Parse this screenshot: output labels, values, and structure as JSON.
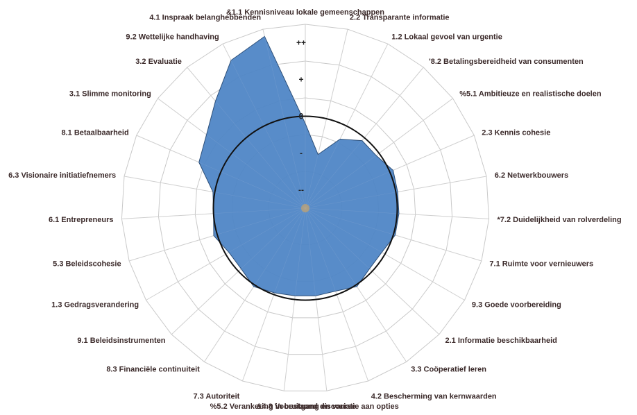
{
  "chart_data": {
    "type": "radar",
    "title": "",
    "categories": [
      "&1.1 Kennisniveau lokale gemeenschappen",
      "2.2 Transparante informatie",
      "1.2 Lokaal gevoel van urgentie",
      "'8.2 Betalingsbereidheid van consumenten",
      "%5.1 Ambitieuze en realistische doelen",
      "2.3 Kennis cohesie",
      "6.2 Netwerkbouwers",
      "*7.2 Duidelijkheid van rolverdeling",
      "7.1 Ruimte voor vernieuwers",
      "9.3 Goede voorbereiding",
      "2.1 Informatie beschikbaarheid",
      "3.3 Coöperatief leren",
      "4.2 Bescherming van kernwaarden",
      "&4.3 Vooruitgang en variatie aan opties",
      "%5.2 Verankering in bestaand discourse",
      "7.3 Autoriteit",
      "8.3 Financiële continuiteit",
      "9.1 Beleidsinstrumenten",
      "1.3 Gedragsverandering",
      "5.3 Beleidscohesie",
      "6.1 Entrepreneurs",
      "6.3 Visionaire initiatiefnemers",
      "8.1 Betaalbaarheid",
      "3.1 Slimme monitoring",
      "3.2 Evaluatie",
      "9.2 Wettelijke handhaving",
      "4.1 Inspraak belanghebbenden"
    ],
    "scale_labels": [
      "--",
      "-",
      "0",
      "+",
      "++"
    ],
    "scale_range": [
      -2.5,
      2.5
    ],
    "series": [
      {
        "values": [
          -0.2,
          -1.0,
          -0.4,
          -0.1,
          -0.1,
          0.1,
          0.05,
          0.05,
          0.05,
          -0.1,
          -0.1,
          0.05,
          -0.1,
          -0.1,
          -0.1,
          -0.05,
          0.05,
          -0.1,
          -0.1,
          0.1,
          0.0,
          0.05,
          0.65,
          0.85,
          1.3,
          2.0,
          2.3
        ],
        "color": "#4f86c6"
      }
    ],
    "reference_circle": 0,
    "grid": true
  }
}
